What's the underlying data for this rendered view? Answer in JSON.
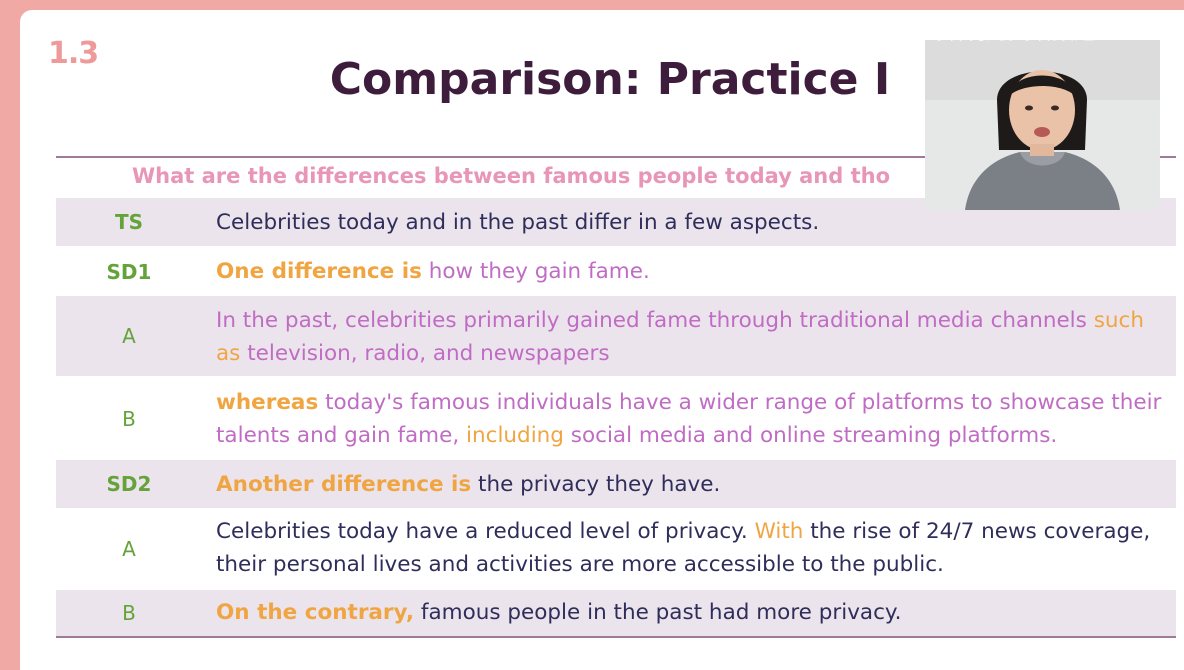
{
  "slide": {
    "number": "1.3",
    "title": "Comparison: Practice I",
    "question": "What are the differences between famous people today and tho"
  },
  "rows": [
    {
      "code": "TS",
      "parts": [
        {
          "t": "Celebrities today and in the past differ in a few aspects."
        }
      ]
    },
    {
      "code": "SD1",
      "parts": [
        {
          "t": "One difference is",
          "s": "orange-bold"
        },
        {
          "t": " how they gain fame.",
          "s": "purple"
        }
      ]
    },
    {
      "code": "A",
      "parts": [
        {
          "t": "In the past, celebrities primarily gained fame through traditional media channels ",
          "s": "purple"
        },
        {
          "t": "such as",
          "s": "orange"
        },
        {
          "t": " television, radio, and newspapers",
          "s": "purple"
        }
      ]
    },
    {
      "code": "B",
      "parts": [
        {
          "t": "whereas",
          "s": "orange-bold"
        },
        {
          "t": " today's famous individuals have a wider range of platforms to showcase their talents and gain fame, ",
          "s": "purple"
        },
        {
          "t": "including",
          "s": "orange"
        },
        {
          "t": " social media and online streaming platforms.",
          "s": "purple"
        }
      ]
    },
    {
      "code": "SD2",
      "parts": [
        {
          "t": "Another difference is",
          "s": "orange-bold"
        },
        {
          "t": " the privacy they have."
        }
      ]
    },
    {
      "code": "A",
      "parts": [
        {
          "t": "Celebrities today have a reduced level of privacy. "
        },
        {
          "t": "With",
          "s": "orange"
        },
        {
          "t": " the rise of 24/7 news coverage, their personal lives and activities are more accessible to the public."
        }
      ]
    },
    {
      "code": "B",
      "parts": [
        {
          "t": "On the contrary,",
          "s": "orange-bold"
        },
        {
          "t": " famous people in the past had more privacy."
        }
      ]
    }
  ],
  "watermark": "英语莉的英语频道",
  "colors": {
    "title": "#3d1d3b",
    "question": "#e896b7",
    "code": "#64a33a",
    "body": "#2f2e5a",
    "purple": "#c06cc4",
    "orange": "#f0a543",
    "shade": "#ece4ec"
  }
}
